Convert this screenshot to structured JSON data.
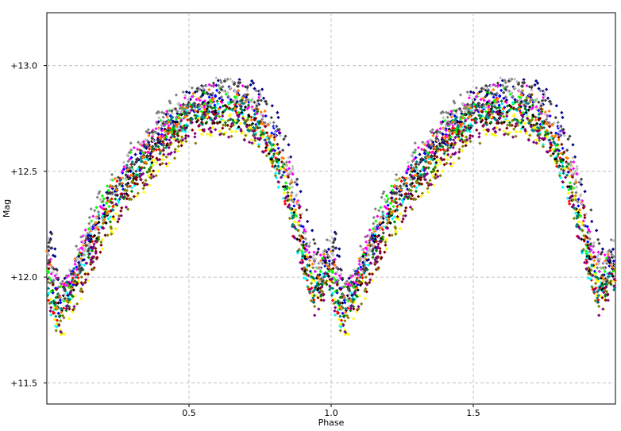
{
  "chart_data": {
    "type": "scatter",
    "title": "",
    "xlabel": "Phase",
    "ylabel": "Mag",
    "xlim": [
      0.0,
      2.0
    ],
    "ylim": [
      13.25,
      11.4
    ],
    "y_inverted": true,
    "grid": true,
    "legend": "none",
    "x_ticks": [
      {
        "value": 0.5,
        "label": "0.5"
      },
      {
        "value": 1.0,
        "label": "1.0"
      },
      {
        "value": 1.5,
        "label": "1.5"
      }
    ],
    "y_ticks": [
      {
        "value": 11.5,
        "label": "+11.5"
      },
      {
        "value": 12.0,
        "label": "+12.0"
      },
      {
        "value": 12.5,
        "label": "+12.5"
      },
      {
        "value": 13.0,
        "label": "+13.0"
      }
    ],
    "light_curve": {
      "phase": [
        0.0,
        0.02,
        0.05,
        0.1,
        0.15,
        0.2,
        0.3,
        0.4,
        0.5,
        0.6,
        0.7,
        0.75,
        0.8,
        0.85,
        0.9,
        0.95,
        1.0
      ],
      "mag": [
        12.1,
        11.95,
        11.85,
        12.0,
        12.15,
        12.3,
        12.5,
        12.65,
        12.78,
        12.82,
        12.8,
        12.75,
        12.65,
        12.45,
        12.2,
        11.95,
        12.1
      ]
    },
    "series_colors": [
      "#0000ff",
      "#ff0000",
      "#00ff00",
      "#ff00ff",
      "#00ffff",
      "#ffff00",
      "#000000",
      "#008000",
      "#800000",
      "#808000",
      "#008080",
      "#000080",
      "#ff8000",
      "#808080",
      "#c0c0c0",
      "#800080",
      "#404040"
    ]
  }
}
